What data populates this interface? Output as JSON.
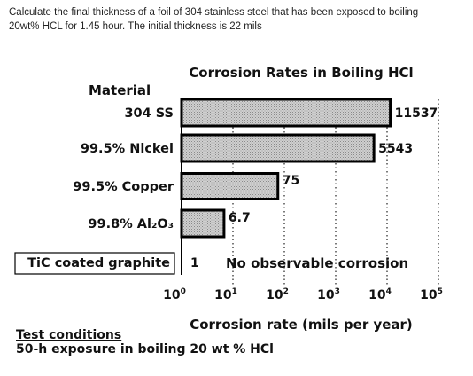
{
  "question": {
    "line1": "Calculate the final thickness of a foil of 304 stainless steel that has been exposed to boiling",
    "line2": "20wt% HCL for 1.45 hour. The initial thickness is 22 mils"
  },
  "chart_data": {
    "type": "bar",
    "orientation": "horizontal",
    "title": "Corrosion Rates in Boiling HCl",
    "category_header": "Material",
    "categories": [
      "304 SS",
      "99.5% Nickel",
      "99.5% Copper",
      "99.8% Al₂O₃",
      "TiC coated graphite"
    ],
    "values": [
      11537,
      5543,
      75,
      6.7,
      1
    ],
    "value_labels": [
      "11537",
      "5543",
      "75",
      "6.7",
      "1"
    ],
    "annotation": "No observable corrosion",
    "xlabel": "Corrosion rate (mils per year)",
    "xscale": "log",
    "xlim": [
      1,
      100000
    ],
    "xticks": [
      {
        "value": 1,
        "base": "10",
        "exp": "0"
      },
      {
        "value": 10,
        "base": "10",
        "exp": "1"
      },
      {
        "value": 100,
        "base": "10",
        "exp": "2"
      },
      {
        "value": 1000,
        "base": "10",
        "exp": "3"
      },
      {
        "value": 10000,
        "base": "10",
        "exp": "4"
      },
      {
        "value": 100000,
        "base": "10",
        "exp": "5"
      }
    ],
    "gridlines": "dotted vertical",
    "bar_fill": "#c4c4c4",
    "bar_stroke": "#000000"
  },
  "test_conditions": {
    "heading": "Test conditions",
    "detail": "50-h exposure in boiling 20 wt % HCl"
  }
}
